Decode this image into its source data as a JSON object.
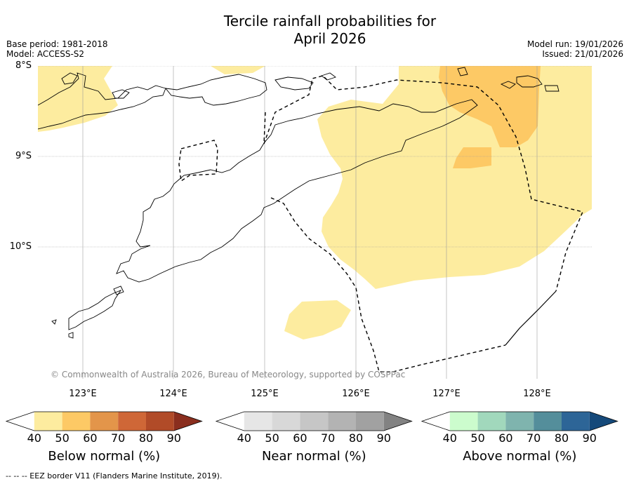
{
  "title": {
    "line1": "Tercile rainfall probabilities for",
    "line2": "April 2026"
  },
  "meta": {
    "base_period": "Base period: 1981-2018",
    "model": "Model: ACCESS-S2",
    "model_run": "Model run: 19/01/2026",
    "issued": "Issued: 21/01/2026"
  },
  "map": {
    "lat_labels": [
      "8°S",
      "9°S",
      "10°S"
    ],
    "lon_labels": [
      "123°E",
      "124°E",
      "125°E",
      "126°E",
      "127°E",
      "128°E"
    ],
    "copyright": "© Commonwealth of Australia 2026, Bureau of Meteorology, supported by COSPPac",
    "colors": {
      "below_50": "#fdec9f",
      "below_60": "#fdc965",
      "land_outline": "#000000",
      "grid": "#9e9e9e"
    }
  },
  "colorbars": [
    {
      "label": "Below normal (%)",
      "ticks": [
        "40",
        "50",
        "60",
        "70",
        "80",
        "90"
      ],
      "colors": [
        "#ffffff",
        "#fdec9f",
        "#fdc965",
        "#e3954a",
        "#cf6737",
        "#b14b28",
        "#8a2e1e"
      ]
    },
    {
      "label": "Near normal (%)",
      "ticks": [
        "40",
        "50",
        "60",
        "70",
        "80",
        "90"
      ],
      "colors": [
        "#ffffff",
        "#e6e6e6",
        "#d8d8d8",
        "#c6c6c6",
        "#b3b3b3",
        "#a1a1a1",
        "#828282"
      ]
    },
    {
      "label": "Above normal (%)",
      "ticks": [
        "40",
        "50",
        "60",
        "70",
        "80",
        "90"
      ],
      "colors": [
        "#ffffff",
        "#ccfccd",
        "#a1d8bc",
        "#7fb4ae",
        "#548e9b",
        "#2d6597",
        "#15497a"
      ]
    }
  ],
  "footnote": "--  --  -- EEZ border V11 (Flanders Marine Institute, 2019)."
}
